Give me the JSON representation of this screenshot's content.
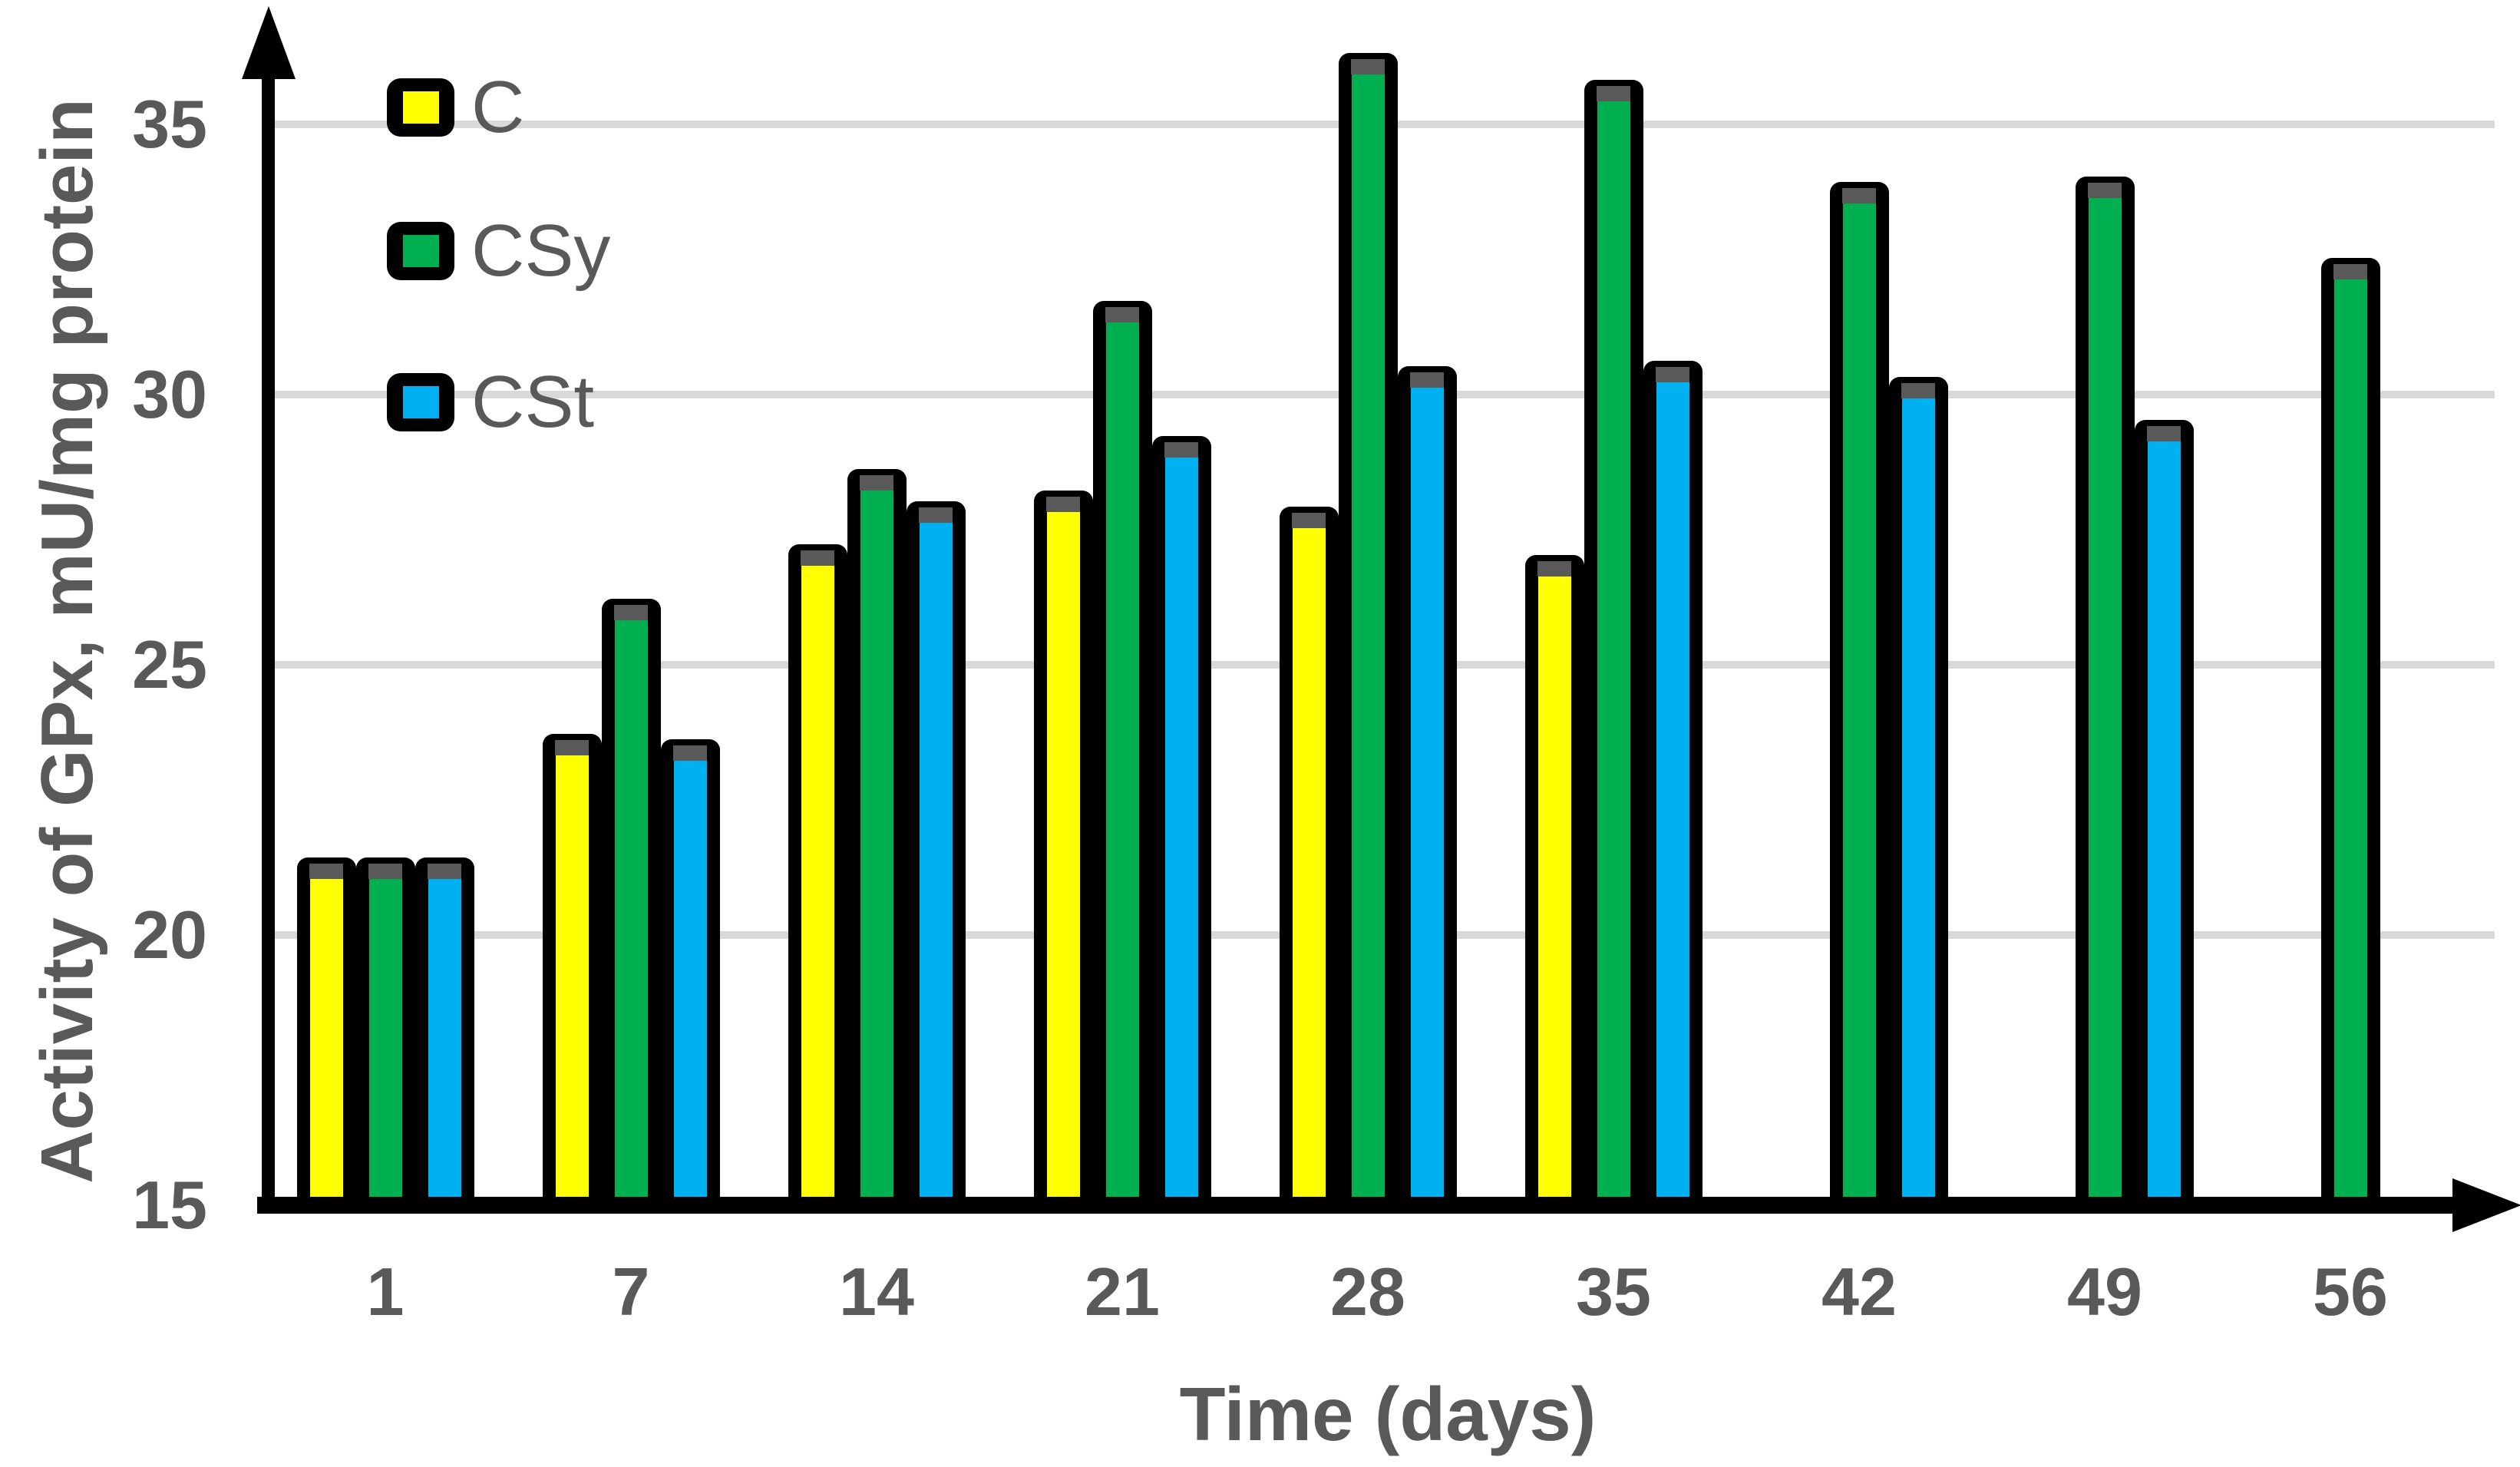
{
  "chart_data": {
    "type": "bar",
    "title": "",
    "xlabel": "Time (days)",
    "ylabel": "Activity of GPx, mU/mg protein",
    "categories": [
      "1",
      "7",
      "14",
      "21",
      "28",
      "35",
      "42",
      "49",
      "56"
    ],
    "series": [
      {
        "name": "C",
        "color": "#FFFF00",
        "values": [
          21.3,
          23.6,
          27.1,
          28.1,
          27.8,
          26.9,
          null,
          null,
          null
        ]
      },
      {
        "name": "CSy",
        "color": "#00B050",
        "values": [
          21.3,
          26.1,
          28.5,
          31.6,
          36.2,
          35.7,
          33.8,
          33.9,
          32.4
        ]
      },
      {
        "name": "CSt",
        "color": "#00B0F0",
        "values": [
          21.3,
          23.5,
          27.9,
          29.1,
          30.4,
          30.5,
          30.2,
          29.4,
          null
        ]
      }
    ],
    "y_ticks": [
      15,
      20,
      25,
      30,
      35
    ],
    "ylim": [
      15,
      36.9
    ],
    "grid": "horizontal gridlines at 20, 25, 30, 35",
    "has_error_caps": true,
    "legend_position": "top-left inside plot area",
    "axis_arrows": "arrowhead at top of y-axis and right end of x-axis"
  },
  "colors": {
    "bar_outline": "#000000",
    "series_C": "#FFFF00",
    "series_CSy": "#00B050",
    "series_CSt": "#00B0F0",
    "gridline": "#D9D9D9",
    "text": "#595959",
    "error_cap": "#595959",
    "background": "#FFFFFF"
  }
}
